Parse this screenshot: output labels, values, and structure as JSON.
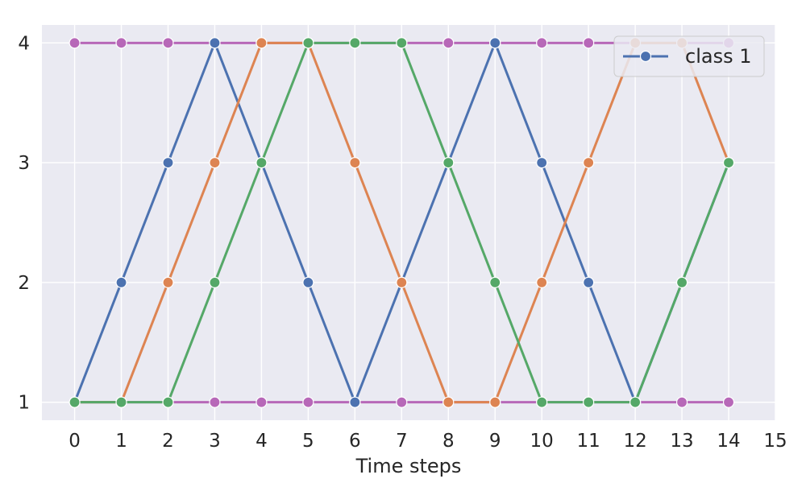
{
  "chart_data": {
    "type": "line",
    "title": "",
    "xlabel": "Time steps",
    "ylabel": "",
    "xlim": [
      -0.7,
      15
    ],
    "ylim": [
      0.85,
      4.15
    ],
    "xticks": [
      0,
      1,
      2,
      3,
      4,
      5,
      6,
      7,
      8,
      9,
      10,
      11,
      12,
      13,
      14,
      15
    ],
    "yticks": [
      1,
      2,
      3,
      4
    ],
    "grid": true,
    "legend_position": "top-right",
    "x": [
      0,
      1,
      2,
      3,
      4,
      5,
      6,
      7,
      8,
      9,
      10,
      11,
      12,
      13,
      14
    ],
    "series": [
      {
        "values": [
          4,
          4,
          4,
          4,
          4,
          4,
          4,
          4,
          4,
          4,
          4,
          4,
          4,
          4,
          4
        ],
        "color": "#b768b8"
      },
      {
        "values": [
          1,
          1,
          1,
          1,
          1,
          1,
          1,
          1,
          1,
          1,
          1,
          1,
          1,
          1,
          1
        ],
        "color": "#b768b8"
      },
      {
        "name": "class 1",
        "values": [
          1,
          2,
          3,
          4,
          3,
          2,
          1,
          2,
          3,
          4,
          3,
          2,
          1,
          2,
          3
        ],
        "color": "#4c72b0"
      },
      {
        "values": [
          1,
          1,
          2,
          3,
          4,
          4,
          3,
          2,
          1,
          1,
          2,
          3,
          4,
          4,
          3
        ],
        "color": "#dd8452"
      },
      {
        "values": [
          1,
          1,
          1,
          2,
          3,
          4,
          4,
          4,
          3,
          2,
          1,
          1,
          1,
          2,
          3
        ],
        "color": "#55a868"
      }
    ],
    "legend": [
      {
        "label": "class 1",
        "color": "#4c72b0"
      }
    ]
  },
  "colors": {
    "plot_background": "#eaeaf2",
    "grid": "#ffffff",
    "text": "#262626"
  }
}
